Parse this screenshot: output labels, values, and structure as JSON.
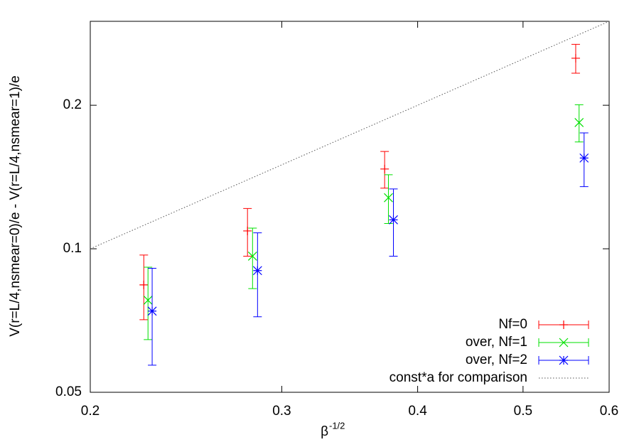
{
  "chart_data": {
    "type": "errorbar",
    "x_label": "β",
    "x_label_sup": "-1/2",
    "y_label": "V(r=L/4,nsmear=0)/e - V(r=L/4,nsmear=1)/e",
    "xlim": [
      0.2,
      0.6
    ],
    "ylim": [
      0.05,
      0.3
    ],
    "xticks": [
      0.2,
      0.3,
      0.4,
      0.5,
      0.6
    ],
    "yticks": [
      0.05,
      0.1,
      0.2
    ],
    "xscale": "log",
    "yscale": "log",
    "legend": "bottom right",
    "series": [
      {
        "name": "Nf=0",
        "color": "#ff0000",
        "marker": "plus",
        "x": [
          0.224,
          0.279,
          0.373,
          0.559
        ],
        "values": [
          0.084,
          0.109,
          0.147,
          0.251
        ],
        "errors": [
          0.013,
          0.0125,
          0.013,
          0.0175
        ]
      },
      {
        "name": "over, Nf=1",
        "color": "#00e000",
        "marker": "cross",
        "x": [
          0.226,
          0.282,
          0.376,
          0.563
        ],
        "values": [
          0.078,
          0.0965,
          0.128,
          0.184
        ],
        "errors": [
          0.0135,
          0.014,
          0.015,
          0.0165
        ]
      },
      {
        "name": "over, Nf=2",
        "color": "#0000ff",
        "marker": "star",
        "x": [
          0.228,
          0.285,
          0.38,
          0.569
        ],
        "values": [
          0.074,
          0.09,
          0.115,
          0.155
        ],
        "errors": [
          0.017,
          0.018,
          0.0185,
          0.02
        ]
      },
      {
        "name": "const*a for comparison",
        "color": "#555555",
        "marker": "dotted-line",
        "x": [
          0.2,
          0.6
        ],
        "values": [
          0.1,
          0.3
        ]
      }
    ]
  }
}
